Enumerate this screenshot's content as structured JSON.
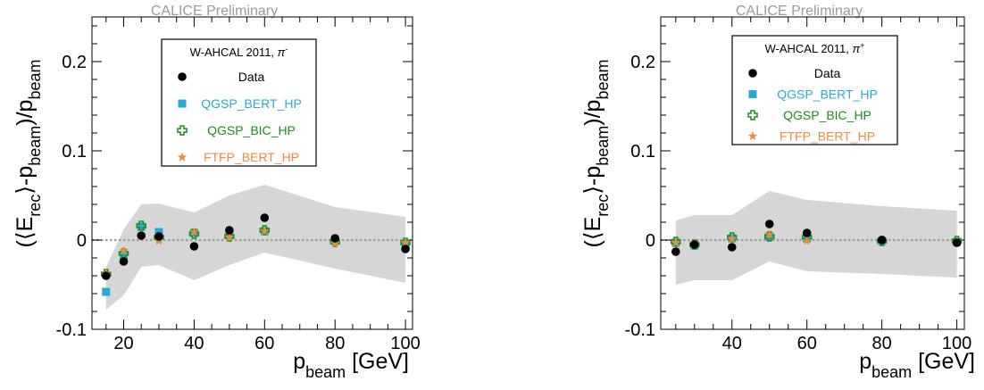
{
  "chart_data": [
    {
      "type": "scatter",
      "title": "CALICE Preliminary",
      "xlabel": "p_beam [GeV]",
      "ylabel": "(<E_rec>-p_beam)/p_beam",
      "xlim": [
        11,
        102
      ],
      "ylim": [
        -0.1,
        0.25
      ],
      "xticks": [
        20,
        40,
        60,
        80,
        100
      ],
      "yticks": [
        -0.1,
        0,
        0.1,
        0.2
      ],
      "ytick_labels": [
        "-0.1",
        "0",
        "0.1",
        "0.2"
      ],
      "legend": {
        "header_text": "W-AHCAL 2011, ",
        "header_particle": "π",
        "header_charge": "-",
        "placement": "top-center"
      },
      "band": {
        "x": [
          15,
          20,
          25,
          30,
          40,
          50,
          60,
          80,
          100
        ],
        "upper": [
          -0.03,
          0.012,
          0.04,
          0.041,
          0.031,
          0.05,
          0.062,
          0.037,
          0.026
        ],
        "lower": [
          -0.078,
          -0.062,
          -0.03,
          -0.028,
          -0.045,
          -0.028,
          -0.014,
          -0.032,
          -0.048
        ]
      },
      "series": [
        {
          "name": "Data",
          "marker": "circle",
          "color": "#000000",
          "x": [
            15,
            20,
            25,
            30,
            40,
            50,
            60,
            80,
            100
          ],
          "y": [
            -0.04,
            -0.024,
            0.005,
            0.004,
            -0.007,
            0.011,
            0.025,
            0.002,
            -0.01
          ]
        },
        {
          "name": "QGSP_BERT_HP",
          "marker": "square",
          "color": "#29a9d2",
          "x": [
            15,
            20,
            25,
            30,
            40,
            50,
            60,
            80,
            100
          ],
          "y": [
            -0.058,
            -0.018,
            0.015,
            0.009,
            0.008,
            0.006,
            0.01,
            -0.001,
            -0.004
          ]
        },
        {
          "name": "QGSP_BIC_HP",
          "marker": "cross",
          "color": "#1c8c1c",
          "x": [
            15,
            20,
            25,
            30,
            40,
            50,
            60,
            80,
            100
          ],
          "y": [
            -0.038,
            -0.015,
            0.016,
            0.003,
            0.007,
            0.004,
            0.011,
            -0.002,
            -0.003
          ]
        },
        {
          "name": "FTFP_BERT_HP",
          "marker": "star",
          "color": "#f08a3c",
          "x": [
            15,
            20,
            25,
            30,
            40,
            50,
            60,
            80,
            100
          ],
          "y": [
            -0.037,
            -0.012,
            0.006,
            -0.001,
            0.009,
            0.003,
            0.01,
            -0.004,
            -0.003
          ]
        }
      ]
    },
    {
      "type": "scatter",
      "title": "CALICE Preliminary",
      "xlabel": "p_beam [GeV]",
      "ylabel": "(<E_rec>-p_beam)/p_beam",
      "xlim": [
        21,
        102
      ],
      "ylim": [
        -0.1,
        0.25
      ],
      "xticks": [
        40,
        60,
        80,
        100
      ],
      "yticks": [
        -0.1,
        0,
        0.1,
        0.2
      ],
      "ytick_labels": [
        "-0.1",
        "0",
        "0.1",
        "0.2"
      ],
      "legend": {
        "header_text": "W-AHCAL 2011, ",
        "header_particle": "π",
        "header_charge": "+",
        "placement": "top-center"
      },
      "band": {
        "x": [
          25,
          30,
          40,
          50,
          60,
          80,
          100
        ],
        "upper": [
          0.022,
          0.028,
          0.028,
          0.055,
          0.045,
          0.038,
          0.033
        ],
        "lower": [
          -0.05,
          -0.045,
          -0.045,
          -0.024,
          -0.035,
          -0.038,
          -0.042
        ]
      },
      "series": [
        {
          "name": "Data",
          "marker": "circle",
          "color": "#000000",
          "x": [
            25,
            30,
            40,
            50,
            60,
            80,
            100
          ],
          "y": [
            -0.013,
            -0.005,
            -0.008,
            0.018,
            0.008,
            0.0,
            -0.003
          ]
        },
        {
          "name": "QGSP_BERT_HP",
          "marker": "square",
          "color": "#29a9d2",
          "x": [
            25,
            30,
            40,
            50,
            60,
            80,
            100
          ],
          "y": [
            -0.003,
            -0.006,
            0.002,
            0.004,
            0.002,
            -0.001,
            -0.002
          ]
        },
        {
          "name": "QGSP_BIC_HP",
          "marker": "cross",
          "color": "#1c8c1c",
          "x": [
            25,
            30,
            40,
            50,
            60,
            80,
            100
          ],
          "y": [
            -0.002,
            -0.005,
            0.003,
            0.004,
            0.003,
            -0.001,
            -0.001
          ]
        },
        {
          "name": "FTFP_BERT_HP",
          "marker": "star",
          "color": "#f08a3c",
          "x": [
            25,
            30,
            40,
            50,
            60,
            80,
            100
          ],
          "y": [
            -0.003,
            -0.004,
            0.001,
            0.006,
            -0.001,
            -0.001,
            -0.002
          ]
        }
      ]
    }
  ]
}
